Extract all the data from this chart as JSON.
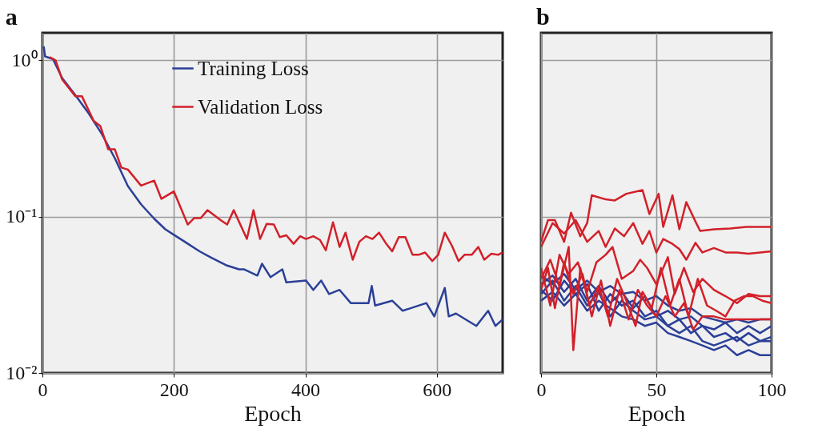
{
  "chart_data": [
    {
      "type": "line",
      "title": "a",
      "xlabel": "Epoch",
      "xlim": [
        0,
        700
      ],
      "xticks": [
        0,
        200,
        400,
        600
      ],
      "ylim": [
        0.01,
        1.5
      ],
      "yticks": [
        {
          "value": 0.01,
          "label": "10⁻²"
        },
        {
          "value": 0.1,
          "label": "10⁻¹"
        },
        {
          "value": 1,
          "label": "10⁰"
        }
      ],
      "log": "y",
      "grid": true,
      "legend": "top",
      "series": [
        {
          "name": "Training Loss",
          "color": "#2b3f98",
          "x": [
            2,
            4,
            16,
            30,
            50,
            70,
            90,
            110,
            130,
            150,
            170,
            187,
            199,
            219,
            239,
            259,
            279,
            299,
            307,
            327,
            334,
            347,
            365,
            371,
            401,
            412,
            424,
            436,
            452,
            469,
            496,
            501,
            506,
            532,
            548,
            584,
            596,
            612,
            618,
            629,
            660,
            678,
            689,
            700
          ],
          "values": [
            1.23,
            1.06,
            1.02,
            0.77,
            0.6,
            0.46,
            0.34,
            0.237,
            0.157,
            0.12,
            0.097,
            0.083,
            0.077,
            0.068,
            0.06,
            0.054,
            0.049,
            0.046,
            0.046,
            0.042,
            0.05,
            0.041,
            0.046,
            0.038,
            0.039,
            0.034,
            0.039,
            0.032,
            0.034,
            0.028,
            0.028,
            0.036,
            0.027,
            0.029,
            0.025,
            0.028,
            0.023,
            0.035,
            0.023,
            0.024,
            0.02,
            0.025,
            0.02,
            0.022
          ]
        },
        {
          "name": "Validation Loss",
          "color": "#d2202a",
          "x": [
            11,
            20,
            30,
            50,
            60,
            78,
            88,
            100,
            110,
            120,
            130,
            150,
            170,
            181,
            200,
            221,
            231,
            241,
            251,
            271,
            281,
            291,
            311,
            321,
            331,
            341,
            352,
            361,
            371,
            382,
            392,
            401,
            412,
            422,
            431,
            442,
            452,
            461,
            472,
            482,
            492,
            502,
            512,
            522,
            532,
            542,
            552,
            563,
            572,
            582,
            593,
            602,
            612,
            623,
            633,
            642,
            653,
            663,
            672,
            683,
            693,
            700
          ],
          "values": [
            1.05,
            1.0,
            0.755,
            0.59,
            0.59,
            0.41,
            0.38,
            0.27,
            0.27,
            0.206,
            0.2,
            0.158,
            0.17,
            0.13,
            0.145,
            0.089,
            0.098,
            0.098,
            0.11,
            0.095,
            0.089,
            0.11,
            0.072,
            0.11,
            0.072,
            0.09,
            0.089,
            0.074,
            0.076,
            0.067,
            0.075,
            0.072,
            0.075,
            0.071,
            0.061,
            0.092,
            0.064,
            0.079,
            0.053,
            0.069,
            0.075,
            0.072,
            0.079,
            0.068,
            0.06,
            0.074,
            0.074,
            0.057,
            0.057,
            0.059,
            0.052,
            0.057,
            0.079,
            0.065,
            0.052,
            0.057,
            0.057,
            0.064,
            0.053,
            0.058,
            0.057,
            0.059
          ]
        }
      ]
    },
    {
      "type": "line",
      "title": "b",
      "xlabel": "Epoch",
      "xlim": [
        0,
        100
      ],
      "xticks": [
        0,
        50,
        100
      ],
      "ylim": [
        0.01,
        1.5
      ],
      "yticks": [
        {
          "value": 0.01,
          "label": null
        },
        {
          "value": 0.1,
          "label": null
        },
        {
          "value": 1,
          "label": null
        }
      ],
      "log": "y",
      "grid": true,
      "tick_labels": "x",
      "series": [
        {
          "color": "#2b3f98",
          "x": [
            0,
            5,
            10,
            15,
            20,
            25,
            30,
            35,
            40,
            45,
            50,
            55,
            60,
            65,
            70,
            75,
            80,
            85,
            90,
            95,
            100
          ],
          "values": [
            0.042,
            0.037,
            0.043,
            0.034,
            0.039,
            0.033,
            0.036,
            0.032,
            0.033,
            0.029,
            0.031,
            0.027,
            0.025,
            0.026,
            0.023,
            0.022,
            0.021,
            0.022,
            0.021,
            0.022,
            0.022
          ]
        },
        {
          "color": "#2b3f98",
          "x": [
            0,
            5,
            10,
            15,
            20,
            25,
            30,
            35,
            40,
            45,
            50,
            55,
            60,
            65,
            70,
            75,
            80,
            85,
            90,
            95,
            100
          ],
          "values": [
            0.037,
            0.042,
            0.033,
            0.04,
            0.029,
            0.036,
            0.028,
            0.033,
            0.026,
            0.031,
            0.023,
            0.025,
            0.022,
            0.023,
            0.02,
            0.019,
            0.021,
            0.018,
            0.02,
            0.018,
            0.02
          ]
        },
        {
          "color": "#2b3f98",
          "x": [
            0,
            5,
            10,
            15,
            20,
            25,
            30,
            35,
            40,
            45,
            50,
            55,
            60,
            65,
            70,
            75,
            80,
            85,
            90,
            95,
            100
          ],
          "values": [
            0.034,
            0.029,
            0.039,
            0.032,
            0.037,
            0.025,
            0.032,
            0.027,
            0.029,
            0.023,
            0.025,
            0.02,
            0.022,
            0.018,
            0.02,
            0.017,
            0.018,
            0.016,
            0.018,
            0.016,
            0.017
          ]
        },
        {
          "color": "#2b3f98",
          "x": [
            0,
            5,
            10,
            15,
            20,
            25,
            30,
            35,
            40,
            45,
            50,
            55,
            60,
            65,
            70,
            75,
            80,
            85,
            90,
            95,
            100
          ],
          "values": [
            0.032,
            0.039,
            0.029,
            0.036,
            0.027,
            0.033,
            0.023,
            0.029,
            0.025,
            0.022,
            0.023,
            0.02,
            0.018,
            0.02,
            0.016,
            0.015,
            0.016,
            0.017,
            0.015,
            0.016,
            0.016
          ]
        },
        {
          "color": "#2b3f98",
          "x": [
            0,
            5,
            10,
            15,
            20,
            25,
            30,
            35,
            40,
            45,
            50,
            55,
            60,
            65,
            70,
            75,
            80,
            85,
            90,
            95,
            100
          ],
          "values": [
            0.029,
            0.033,
            0.027,
            0.032,
            0.025,
            0.029,
            0.026,
            0.023,
            0.022,
            0.02,
            0.021,
            0.018,
            0.017,
            0.016,
            0.015,
            0.014,
            0.015,
            0.013,
            0.014,
            0.013,
            0.013
          ]
        },
        {
          "color": "#d2202a",
          "x": [
            0,
            3,
            6,
            10,
            13,
            17,
            20,
            22,
            28,
            32,
            37,
            44,
            47,
            51,
            53,
            57,
            60,
            63,
            67,
            69,
            75,
            82,
            89,
            100
          ],
          "values": [
            0.069,
            0.095,
            0.095,
            0.069,
            0.106,
            0.075,
            0.091,
            0.137,
            0.129,
            0.127,
            0.14,
            0.148,
            0.104,
            0.14,
            0.086,
            0.137,
            0.083,
            0.124,
            0.093,
            0.081,
            0.083,
            0.084,
            0.086,
            0.086
          ]
        },
        {
          "color": "#d2202a",
          "x": [
            0,
            5,
            10,
            15,
            20,
            25,
            28,
            32,
            36,
            40,
            44,
            47,
            50,
            53,
            57,
            60,
            63,
            67,
            70,
            75,
            80,
            85,
            90,
            95,
            100
          ],
          "values": [
            0.064,
            0.091,
            0.078,
            0.095,
            0.069,
            0.081,
            0.064,
            0.084,
            0.075,
            0.091,
            0.067,
            0.081,
            0.059,
            0.072,
            0.067,
            0.062,
            0.053,
            0.068,
            0.059,
            0.063,
            0.059,
            0.059,
            0.058,
            0.059,
            0.06
          ]
        },
        {
          "color": "#d2202a",
          "x": [
            0,
            4,
            8,
            12,
            16,
            20,
            24,
            28,
            31,
            35,
            40,
            43,
            46,
            50,
            55,
            58,
            62,
            66,
            70,
            75,
            80,
            85,
            90,
            95,
            100
          ],
          "values": [
            0.047,
            0.027,
            0.057,
            0.043,
            0.051,
            0.033,
            0.051,
            0.057,
            0.064,
            0.04,
            0.045,
            0.053,
            0.047,
            0.037,
            0.055,
            0.032,
            0.047,
            0.033,
            0.04,
            0.034,
            0.031,
            0.028,
            0.032,
            0.031,
            0.031
          ]
        },
        {
          "color": "#d2202a",
          "x": [
            0,
            4,
            8,
            12,
            14,
            17,
            21,
            25,
            29,
            33,
            37,
            41,
            44,
            48,
            52,
            56,
            60,
            64,
            68,
            72,
            76,
            80,
            84,
            88,
            92,
            96,
            100
          ],
          "values": [
            0.04,
            0.053,
            0.036,
            0.064,
            0.014,
            0.047,
            0.027,
            0.036,
            0.023,
            0.04,
            0.029,
            0.02,
            0.033,
            0.026,
            0.047,
            0.027,
            0.04,
            0.023,
            0.04,
            0.027,
            0.025,
            0.023,
            0.029,
            0.031,
            0.031,
            0.029,
            0.028
          ]
        },
        {
          "color": "#d2202a",
          "x": [
            0,
            3,
            6,
            10,
            14,
            18,
            22,
            26,
            30,
            34,
            38,
            42,
            46,
            50,
            54,
            58,
            62,
            66,
            70,
            75,
            80,
            85,
            90,
            95,
            100
          ],
          "values": [
            0.034,
            0.047,
            0.026,
            0.051,
            0.032,
            0.043,
            0.023,
            0.039,
            0.02,
            0.034,
            0.022,
            0.034,
            0.027,
            0.023,
            0.031,
            0.023,
            0.028,
            0.019,
            0.023,
            0.023,
            0.022,
            0.022,
            0.022,
            0.022,
            0.022
          ]
        }
      ]
    }
  ]
}
